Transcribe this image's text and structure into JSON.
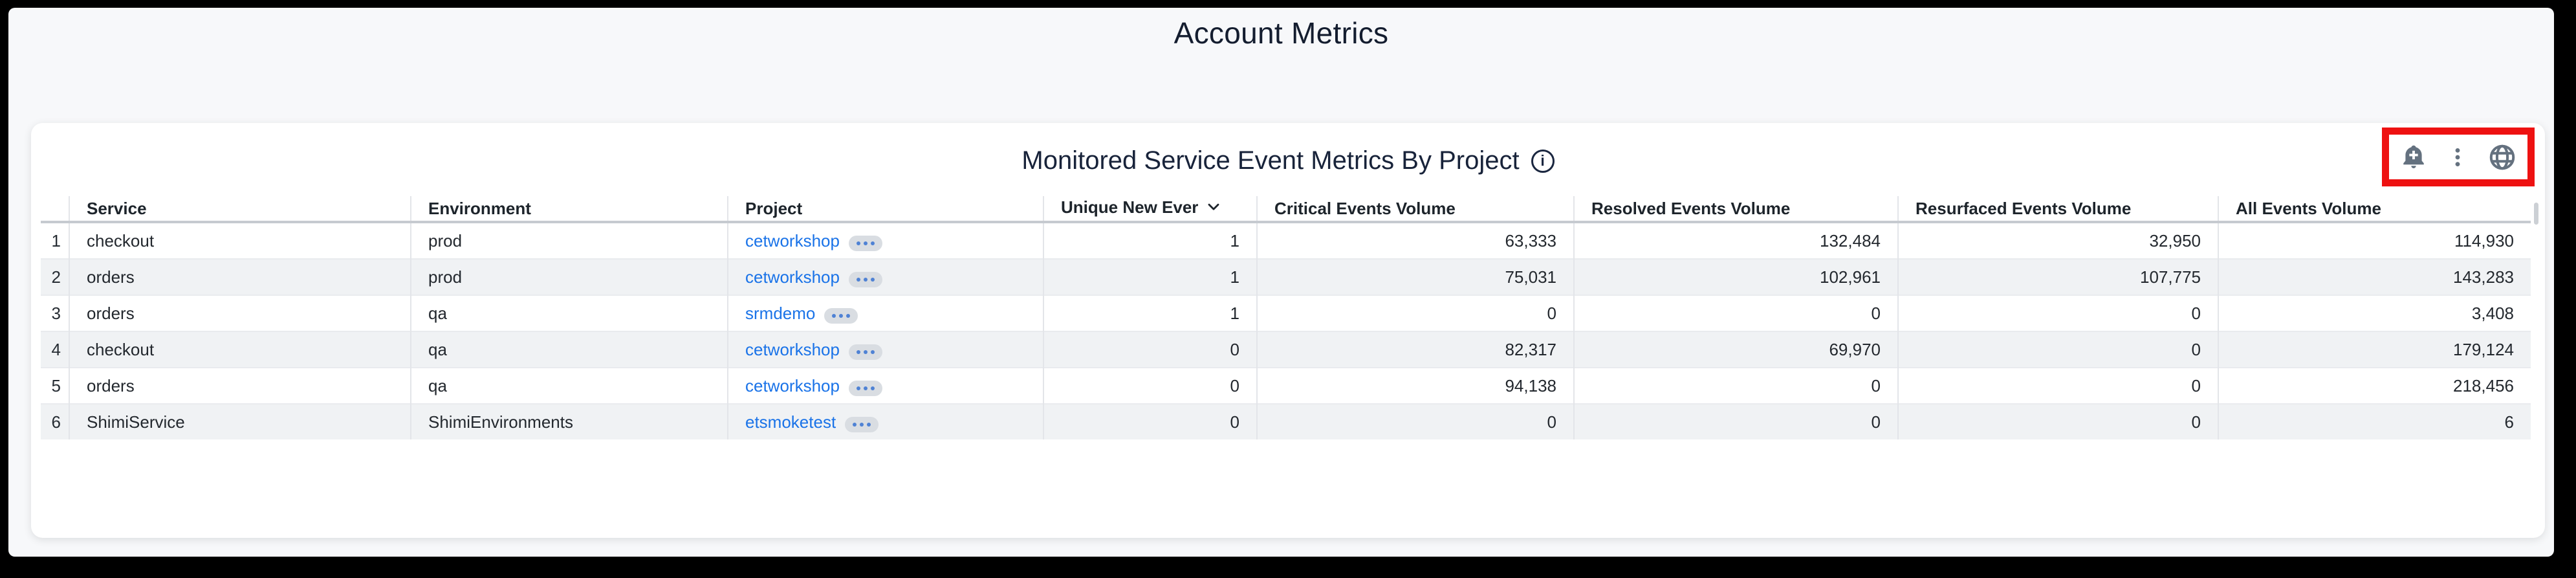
{
  "page": {
    "title": "Account Metrics"
  },
  "panel": {
    "title": "Monitored Service Event Metrics By Project",
    "info_icon": "info-icon",
    "toolbar": {
      "icons": [
        {
          "name": "add-alert-bell-icon"
        },
        {
          "name": "kebab-menu-icon"
        },
        {
          "name": "globe-icon"
        }
      ],
      "icon_color": "#64717f",
      "highlight_box_color": "#ee1111"
    }
  },
  "table": {
    "columns": [
      {
        "key": "num",
        "label": ""
      },
      {
        "key": "service",
        "label": "Service"
      },
      {
        "key": "environment",
        "label": "Environment"
      },
      {
        "key": "project",
        "label": "Project"
      },
      {
        "key": "unique",
        "label": "Unique New Ever",
        "sorted": "desc",
        "numeric": true
      },
      {
        "key": "critical",
        "label": "Critical Events Volume",
        "numeric": true
      },
      {
        "key": "resolved",
        "label": "Resolved Events Volume",
        "numeric": true
      },
      {
        "key": "resurfaced",
        "label": "Resurfaced Events Volume",
        "numeric": true
      },
      {
        "key": "all",
        "label": "All Events Volume",
        "numeric": true
      }
    ],
    "rows": [
      {
        "num": "1",
        "service": "checkout",
        "environment": "prod",
        "project": "cetworkshop",
        "unique": "1",
        "critical": "63,333",
        "resolved": "132,484",
        "resurfaced": "32,950",
        "all": "114,930"
      },
      {
        "num": "2",
        "service": "orders",
        "environment": "prod",
        "project": "cetworkshop",
        "unique": "1",
        "critical": "75,031",
        "resolved": "102,961",
        "resurfaced": "107,775",
        "all": "143,283"
      },
      {
        "num": "3",
        "service": "orders",
        "environment": "qa",
        "project": "srmdemo",
        "unique": "1",
        "critical": "0",
        "resolved": "0",
        "resurfaced": "0",
        "all": "3,408"
      },
      {
        "num": "4",
        "service": "checkout",
        "environment": "qa",
        "project": "cetworkshop",
        "unique": "0",
        "critical": "82,317",
        "resolved": "69,970",
        "resurfaced": "0",
        "all": "179,124"
      },
      {
        "num": "5",
        "service": "orders",
        "environment": "qa",
        "project": "cetworkshop",
        "unique": "0",
        "critical": "94,138",
        "resolved": "0",
        "resurfaced": "0",
        "all": "218,456"
      },
      {
        "num": "6",
        "service": "ShimiService",
        "environment": "ShimiEnvironments",
        "project": "etsmoketest",
        "unique": "0",
        "critical": "0",
        "resolved": "0",
        "resurfaced": "0",
        "all": "6"
      }
    ]
  },
  "colors": {
    "frame": "#000000",
    "background": "#f7f8fa",
    "card": "#ffffff",
    "title_text": "#141d2f",
    "link": "#1a73e8",
    "stripe": "#f0f2f4",
    "annotation_red": "#ee1111",
    "toolbar_icon": "#64717f"
  }
}
